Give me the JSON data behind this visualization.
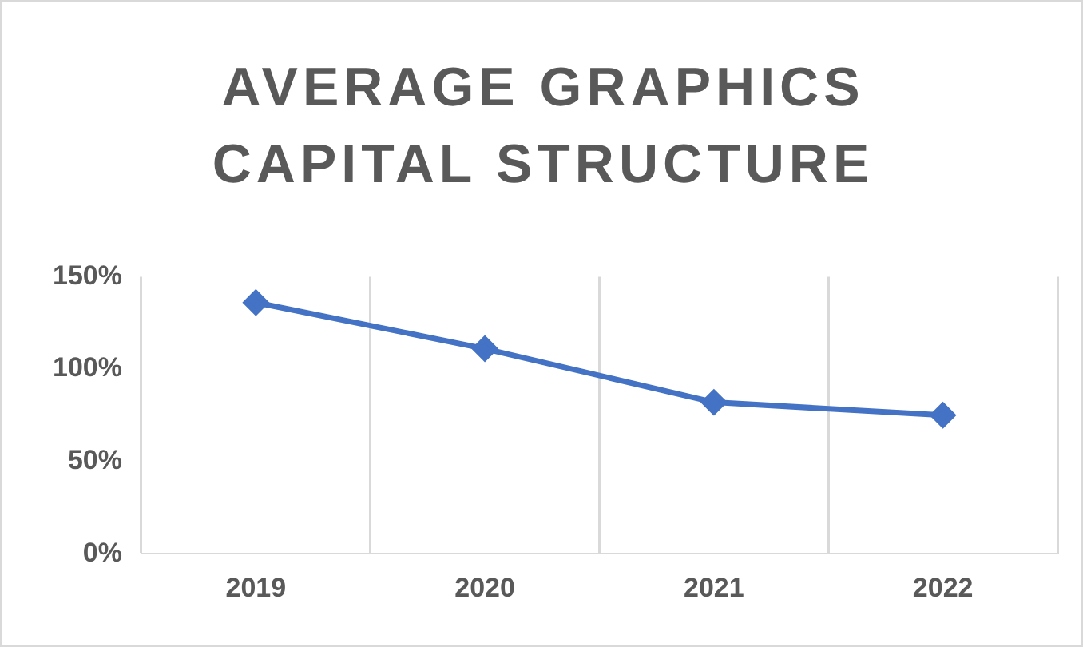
{
  "chart_data": {
    "type": "line",
    "title": "AVERAGE GRAPHICS CAPITAL STRUCTURE",
    "categories": [
      "2019",
      "2020",
      "2021",
      "2022"
    ],
    "series": [
      {
        "color": "#4472c4",
        "values": [
          136,
          111,
          82,
          75
        ]
      }
    ],
    "ylim": [
      0,
      150
    ],
    "yticks": [
      {
        "value": 0,
        "label": "0%"
      },
      {
        "value": 50,
        "label": "50%"
      },
      {
        "value": 100,
        "label": "100%"
      },
      {
        "value": 150,
        "label": "150%"
      }
    ],
    "grid": "x",
    "legend": false,
    "marker": "diamond",
    "line_style": "solid"
  }
}
